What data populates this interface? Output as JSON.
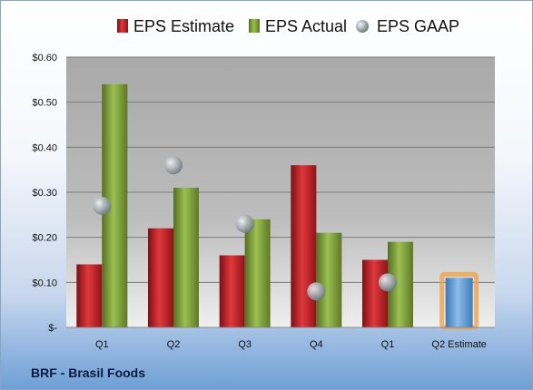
{
  "chart_data": {
    "type": "bar",
    "title": "",
    "xlabel": "",
    "ylabel": "",
    "ylim": [
      0,
      0.6
    ],
    "yticks": [
      0,
      0.1,
      0.2,
      0.3,
      0.4,
      0.5,
      0.6
    ],
    "ytick_labels": [
      "$-",
      "$0.10",
      "$0.20",
      "$0.30",
      "$0.40",
      "$0.50",
      "$0.60"
    ],
    "categories": [
      "Q1",
      "Q2",
      "Q3",
      "Q4",
      "Q1",
      "Q2 Estimate"
    ],
    "legend_position": "top",
    "grid": true,
    "series": [
      {
        "name": "EPS Estimate",
        "kind": "bar",
        "color": "#c0262b",
        "values": [
          0.14,
          0.22,
          0.16,
          0.36,
          0.15,
          null
        ]
      },
      {
        "name": "EPS Actual",
        "kind": "bar",
        "color": "#7fa23b",
        "values": [
          0.54,
          0.31,
          0.24,
          0.21,
          0.19,
          null
        ]
      },
      {
        "name": "EPS GAAP",
        "kind": "marker",
        "color": "#9aa4ad",
        "values": [
          0.27,
          0.36,
          0.23,
          0.08,
          0.1,
          null
        ]
      },
      {
        "name": "",
        "kind": "bar-estimate",
        "color": "#5b9bd5",
        "values": [
          null,
          null,
          null,
          null,
          null,
          0.11
        ]
      }
    ]
  },
  "footer": {
    "label": "BRF - Brasil Foods"
  }
}
